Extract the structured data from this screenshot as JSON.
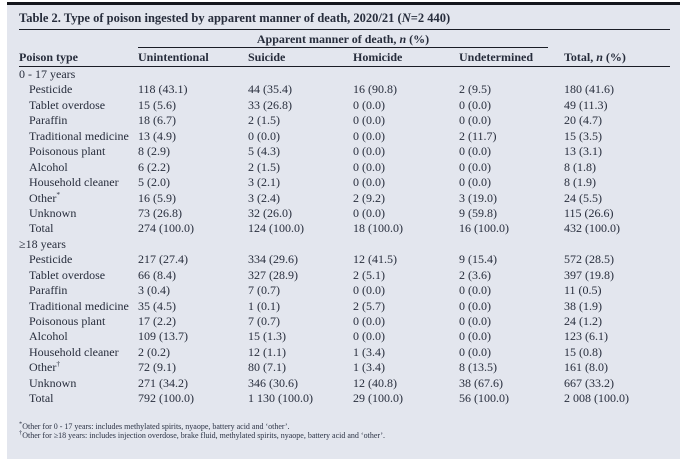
{
  "colors": {
    "panel_bg": "#e3e6ee",
    "text": "#272d3c",
    "rule": "#1a1d26"
  },
  "table": {
    "title": {
      "before": "Table 2. Type of poison ingested by apparent manner of death, 2020/21 (",
      "n": "N",
      "after": "=2 440)"
    },
    "spanner": {
      "before": "Apparent manner of death, ",
      "n": "n",
      "after": " (%)"
    },
    "headers": {
      "poison_type": "Poison type",
      "unintentional": "Unintentional",
      "suicide": "Suicide",
      "homicide": "Homicide",
      "undetermined": "Undetermined",
      "total": {
        "before": "Total, ",
        "n": "n",
        "after": " (%)"
      }
    },
    "sections": [
      {
        "label": "0 - 17 years",
        "rows": [
          {
            "name": "Pesticide",
            "sup": "",
            "u": "118 (43.1)",
            "s": "44 (35.4)",
            "h": "16 (90.8)",
            "ud": "2 (9.5)",
            "t": "180 (41.6)"
          },
          {
            "name": "Tablet overdose",
            "sup": "",
            "u": "15 (5.6)",
            "s": "33 (26.8)",
            "h": "0 (0.0)",
            "ud": "0 (0.0)",
            "t": "49 (11.3)"
          },
          {
            "name": "Paraffin",
            "sup": "",
            "u": "18 (6.7)",
            "s": "2 (1.5)",
            "h": "0 (0.0)",
            "ud": "0 (0.0)",
            "t": "20 (4.7)"
          },
          {
            "name": "Traditional medicine",
            "sup": "",
            "u": "13 (4.9)",
            "s": "0 (0.0)",
            "h": "0 (0.0)",
            "ud": "2 (11.7)",
            "t": "15 (3.5)"
          },
          {
            "name": "Poisonous plant",
            "sup": "",
            "u": "8 (2.9)",
            "s": "5 (4.3)",
            "h": "0 (0.0)",
            "ud": "0 (0.0)",
            "t": "13 (3.1)"
          },
          {
            "name": "Alcohol",
            "sup": "",
            "u": "6 (2.2)",
            "s": "2 (1.5)",
            "h": "0 (0.0)",
            "ud": "0 (0.0)",
            "t": "8 (1.8)"
          },
          {
            "name": "Household cleaner",
            "sup": "",
            "u": "5 (2.0)",
            "s": "3 (2.1)",
            "h": "0 (0.0)",
            "ud": "0 (0.0)",
            "t": "8 (1.9)"
          },
          {
            "name": "Other",
            "sup": "*",
            "u": "16 (5.9)",
            "s": "3 (2.4)",
            "h": "2 (9.2)",
            "ud": "3 (19.0)",
            "t": "24 (5.5)"
          },
          {
            "name": "Unknown",
            "sup": "",
            "u": "73 (26.8)",
            "s": "32 (26.0)",
            "h": "0 (0.0)",
            "ud": "9 (59.8)",
            "t": "115 (26.6)"
          },
          {
            "name": "Total",
            "sup": "",
            "u": "274 (100.0)",
            "s": "124 (100.0)",
            "h": "18 (100.0)",
            "ud": "16 (100.0)",
            "t": "432 (100.0)"
          }
        ]
      },
      {
        "label": "≥18 years",
        "rows": [
          {
            "name": "Pesticide",
            "sup": "",
            "u": "217 (27.4)",
            "s": "334 (29.6)",
            "h": "12 (41.5)",
            "ud": "9 (15.4)",
            "t": "572 (28.5)"
          },
          {
            "name": "Tablet overdose",
            "sup": "",
            "u": "66 (8.4)",
            "s": "327 (28.9)",
            "h": "2 (5.1)",
            "ud": "2 (3.6)",
            "t": "397 (19.8)"
          },
          {
            "name": "Paraffin",
            "sup": "",
            "u": "3 (0.4)",
            "s": "7 (0.7)",
            "h": "0 (0.0)",
            "ud": "0 (0.0)",
            "t": "11 (0.5)"
          },
          {
            "name": "Traditional medicine",
            "sup": "",
            "u": "35 (4.5)",
            "s": "1 (0.1)",
            "h": "2 (5.7)",
            "ud": "0 (0.0)",
            "t": "38 (1.9)"
          },
          {
            "name": "Poisonous plant",
            "sup": "",
            "u": "17 (2.2)",
            "s": "7 (0.7)",
            "h": "0 (0.0)",
            "ud": "0 (0.0)",
            "t": "24 (1.2)"
          },
          {
            "name": "Alcohol",
            "sup": "",
            "u": "109 (13.7)",
            "s": "15 (1.3)",
            "h": "0 (0.0)",
            "ud": "0 (0.0)",
            "t": "123 (6.1)"
          },
          {
            "name": "Household cleaner",
            "sup": "",
            "u": "2 (0.2)",
            "s": "12 (1.1)",
            "h": "1 (3.4)",
            "ud": "0 (0.0)",
            "t": "15 (0.8)"
          },
          {
            "name": "Other",
            "sup": "†",
            "u": "72 (9.1)",
            "s": "80 (7.1)",
            "h": "1 (3.4)",
            "ud": "8 (13.5)",
            "t": "161 (8.0)"
          },
          {
            "name": "Unknown",
            "sup": "",
            "u": "271 (34.2)",
            "s": "346 (30.6)",
            "h": "12 (40.8)",
            "ud": "38 (67.6)",
            "t": "667 (33.2)"
          },
          {
            "name": "Total",
            "sup": "",
            "u": "792 (100.0)",
            "s": "1 130 (100.0)",
            "h": "29 (100.0)",
            "ud": "56 (100.0)",
            "t": "2 008 (100.0)"
          }
        ]
      }
    ],
    "footnotes": [
      {
        "marker": "*",
        "text": "Other for 0 - 17 years: includes methylated spirits, nyaope, battery acid and ‘other’."
      },
      {
        "marker": "†",
        "text": "Other for ≥18 years: includes injection overdose, brake fluid, methylated spirits, nyaope, battery acid and ‘other’."
      }
    ]
  }
}
